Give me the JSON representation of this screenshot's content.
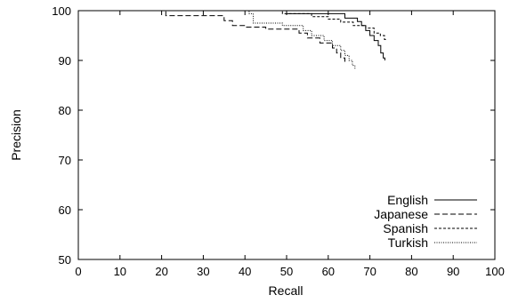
{
  "chart_data": {
    "type": "line",
    "title": "",
    "xlabel": "Recall",
    "ylabel": "Precision",
    "xlim": [
      0,
      100
    ],
    "ylim": [
      50,
      100
    ],
    "x_ticks": [
      "0",
      "10",
      "20",
      "30",
      "40",
      "50",
      "60",
      "70",
      "80",
      "90",
      "100"
    ],
    "y_ticks": [
      "50",
      "60",
      "70",
      "80",
      "90",
      "100"
    ],
    "grid": false,
    "legend_position": "bottom-right",
    "series": [
      {
        "name": "English",
        "style": "solid",
        "color": "#000000",
        "points": [
          [
            0,
            100
          ],
          [
            50,
            100
          ],
          [
            50,
            99.4
          ],
          [
            58,
            99.4
          ],
          [
            64,
            99.4
          ],
          [
            64,
            98.5
          ],
          [
            67,
            98.5
          ],
          [
            67,
            97.8
          ],
          [
            68,
            97.8
          ],
          [
            68,
            97.0
          ],
          [
            69,
            97.0
          ],
          [
            69,
            96.0
          ],
          [
            70,
            96.0
          ],
          [
            70,
            95.0
          ],
          [
            71,
            95.0
          ],
          [
            71,
            94.0
          ],
          [
            72,
            94.0
          ],
          [
            72,
            93.0
          ],
          [
            72.6,
            93.0
          ],
          [
            72.6,
            91.5
          ],
          [
            73.2,
            91.5
          ],
          [
            73.2,
            90.5
          ],
          [
            73.6,
            90.5
          ],
          [
            73.6,
            90.0
          ]
        ]
      },
      {
        "name": "Japanese",
        "style": "dashed",
        "color": "#000000",
        "points": [
          [
            0,
            100
          ],
          [
            21,
            100
          ],
          [
            21,
            99.0
          ],
          [
            35,
            99.0
          ],
          [
            35,
            98.0
          ],
          [
            37,
            98.0
          ],
          [
            37,
            97.0
          ],
          [
            40,
            97.0
          ],
          [
            40,
            96.7
          ],
          [
            45,
            96.7
          ],
          [
            45,
            96.3
          ],
          [
            53,
            96.3
          ],
          [
            53,
            95.5
          ],
          [
            55,
            95.5
          ],
          [
            55,
            94.5
          ],
          [
            58,
            94.5
          ],
          [
            58,
            93.5
          ],
          [
            61,
            93.5
          ],
          [
            61,
            92.5
          ],
          [
            62,
            92.5
          ],
          [
            62,
            91.5
          ],
          [
            63,
            91.5
          ],
          [
            63,
            90.5
          ],
          [
            64,
            90.5
          ],
          [
            64,
            89.5
          ]
        ]
      },
      {
        "name": "Spanish",
        "style": "dotted",
        "color": "#000000",
        "points": [
          [
            0,
            100
          ],
          [
            49,
            100
          ],
          [
            49,
            99.4
          ],
          [
            56,
            99.4
          ],
          [
            56,
            98.8
          ],
          [
            60,
            98.8
          ],
          [
            60,
            98.3
          ],
          [
            63,
            98.3
          ],
          [
            63,
            97.7
          ],
          [
            66,
            97.7
          ],
          [
            66,
            97.0
          ],
          [
            69,
            97.0
          ],
          [
            69,
            96.5
          ],
          [
            71,
            96.5
          ],
          [
            71,
            95.5
          ],
          [
            72.5,
            95.5
          ],
          [
            72.5,
            95.0
          ],
          [
            73.5,
            95.0
          ],
          [
            73.5,
            94.2
          ],
          [
            74,
            94.2
          ]
        ]
      },
      {
        "name": "Turkish",
        "style": "fine-dotted",
        "color": "#000000",
        "points": [
          [
            0,
            100
          ],
          [
            41,
            100
          ],
          [
            41,
            99.4
          ],
          [
            42,
            99.4
          ],
          [
            42,
            97.5
          ],
          [
            49,
            97.5
          ],
          [
            49,
            97.0
          ],
          [
            54,
            97.0
          ],
          [
            54,
            96.0
          ],
          [
            56,
            96.0
          ],
          [
            56,
            95.0
          ],
          [
            59,
            95.0
          ],
          [
            59,
            94.0
          ],
          [
            61,
            94.0
          ],
          [
            61,
            93.0
          ],
          [
            63,
            93.0
          ],
          [
            63,
            92.0
          ],
          [
            64,
            92.0
          ],
          [
            64,
            91.0
          ],
          [
            65,
            91.0
          ],
          [
            65,
            90.0
          ],
          [
            65.8,
            90.0
          ],
          [
            65.8,
            89.0
          ],
          [
            66.4,
            89.0
          ],
          [
            66.4,
            88.2
          ]
        ]
      }
    ]
  }
}
